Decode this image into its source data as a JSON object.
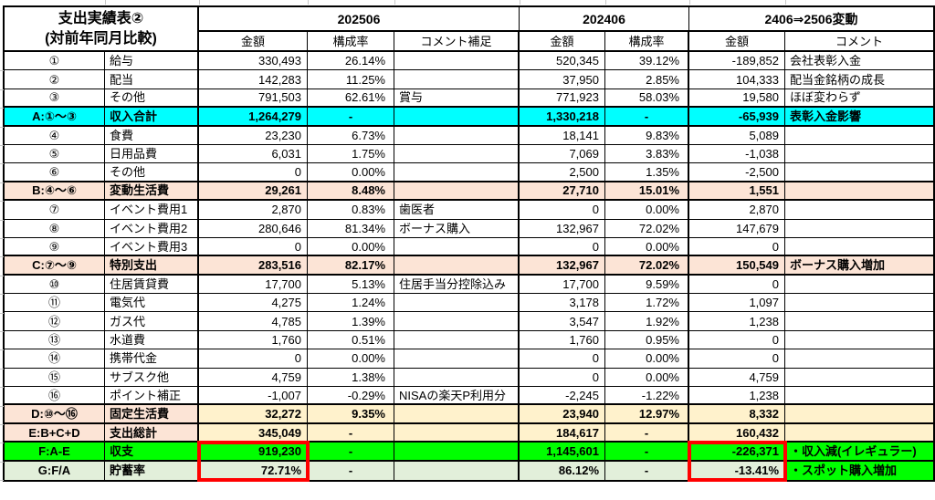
{
  "table": {
    "title": [
      "支出実績表②",
      "(対前年同月比較)"
    ],
    "period_headers": [
      "202506",
      "202406",
      "2406⇒2506変動"
    ],
    "sub_headers": [
      "金額",
      "構成率",
      "コメント補足",
      "金額",
      "構成率",
      "金額",
      "コメント"
    ],
    "rows": [
      {
        "style": "data",
        "cells": [
          "①",
          "給与",
          "330,493",
          "26.14%",
          "",
          "520,345",
          "39.12%",
          "-189,852",
          "会社表彰入金"
        ]
      },
      {
        "style": "data",
        "cells": [
          "②",
          "配当",
          "142,283",
          "11.25%",
          "",
          "37,950",
          "2.85%",
          "104,333",
          "配当金銘柄の成長"
        ]
      },
      {
        "style": "data",
        "cells": [
          "③",
          "その他",
          "791,503",
          "62.61%",
          "賞与",
          "771,923",
          "58.03%",
          "19,580",
          "ほぼ変わらず"
        ]
      },
      {
        "style": "cyan",
        "cells": [
          "A:①〜③",
          "収入合計",
          "1,264,279",
          "-",
          "",
          "1,330,218",
          "-",
          "-65,939",
          "表彰入金影響"
        ]
      },
      {
        "style": "data",
        "cells": [
          "④",
          "食費",
          "23,230",
          "6.73%",
          "",
          "18,141",
          "9.83%",
          "5,089",
          ""
        ]
      },
      {
        "style": "data",
        "cells": [
          "⑤",
          "日用品費",
          "6,031",
          "1.75%",
          "",
          "7,069",
          "3.83%",
          "-1,038",
          ""
        ]
      },
      {
        "style": "data",
        "cells": [
          "⑥",
          "その他",
          "0",
          "0.00%",
          "",
          "2,500",
          "1.35%",
          "-2,500",
          ""
        ]
      },
      {
        "style": "peach",
        "cells": [
          "B:④〜⑥",
          "変動生活費",
          "29,261",
          "8.48%",
          "",
          "27,710",
          "15.01%",
          "1,551",
          ""
        ]
      },
      {
        "style": "data",
        "cells": [
          "⑦",
          "イベント費用1",
          "2,870",
          "0.83%",
          "歯医者",
          "0",
          "0.00%",
          "2,870",
          ""
        ]
      },
      {
        "style": "data",
        "cells": [
          "⑧",
          "イベント費用2",
          "280,646",
          "81.34%",
          "ボーナス購入",
          "132,967",
          "72.02%",
          "147,679",
          ""
        ]
      },
      {
        "style": "data",
        "cells": [
          "⑨",
          "イベント費用3",
          "0",
          "0.00%",
          "",
          "0",
          "0.00%",
          "0",
          ""
        ]
      },
      {
        "style": "peach",
        "cells": [
          "C:⑦〜⑨",
          "特別支出",
          "283,516",
          "82.17%",
          "",
          "132,967",
          "72.02%",
          "150,549",
          "ボーナス購入増加"
        ]
      },
      {
        "style": "data",
        "cells": [
          "⑩",
          "住居賃貸費",
          "17,700",
          "5.13%",
          "住居手当分控除込み",
          "17,700",
          "9.59%",
          "0",
          ""
        ]
      },
      {
        "style": "data",
        "cells": [
          "⑪",
          "電気代",
          "4,275",
          "1.24%",
          "",
          "3,178",
          "1.72%",
          "1,097",
          ""
        ]
      },
      {
        "style": "data",
        "cells": [
          "⑫",
          "ガス代",
          "4,785",
          "1.39%",
          "",
          "3,547",
          "1.92%",
          "1,238",
          ""
        ]
      },
      {
        "style": "data",
        "cells": [
          "⑬",
          "水道費",
          "1,760",
          "0.51%",
          "",
          "1,760",
          "0.95%",
          "0",
          ""
        ]
      },
      {
        "style": "data",
        "cells": [
          "⑭",
          "携帯代金",
          "0",
          "0.00%",
          "",
          "0",
          "0.00%",
          "0",
          ""
        ]
      },
      {
        "style": "data",
        "cells": [
          "⑮",
          "サブスク他",
          "4,759",
          "1.38%",
          "",
          "0",
          "0.00%",
          "4,759",
          ""
        ]
      },
      {
        "style": "data",
        "cells": [
          "⑯",
          "ポイント補正",
          "-1,007",
          "-0.29%",
          "NISAの楽天P利用分",
          "-2,245",
          "-1.22%",
          "1,238",
          ""
        ]
      },
      {
        "style": "mix",
        "cells": [
          "D:⑩〜⑯",
          "固定生活費",
          "32,272",
          "9.35%",
          "",
          "23,940",
          "12.97%",
          "8,332",
          ""
        ]
      },
      {
        "style": "mix",
        "cells": [
          "E:B+C+D",
          "支出総計",
          "345,049",
          "-",
          "",
          "184,617",
          "-",
          "160,432",
          ""
        ]
      },
      {
        "style": "green",
        "cells": [
          "F:A-E",
          "収支",
          "919,230",
          "-",
          "",
          "1,145,601",
          "-",
          "-226,371",
          "・収入減(イレギュラー)"
        ]
      },
      {
        "style": "lgreen",
        "cells": [
          "G:F/A",
          "貯蓄率",
          "72.71%",
          "-",
          "",
          "86.12%",
          "-",
          "-13.41%",
          "・スポット購入増加"
        ]
      }
    ],
    "colors": {
      "highlight_cyan": "#00ffff",
      "highlight_green": "#00ff00",
      "highlight_peach": "#fce4d6",
      "highlight_yellow": "#fff2cc",
      "highlight_light_green": "#e2efda",
      "alert_box_red": "#ff0000"
    }
  }
}
